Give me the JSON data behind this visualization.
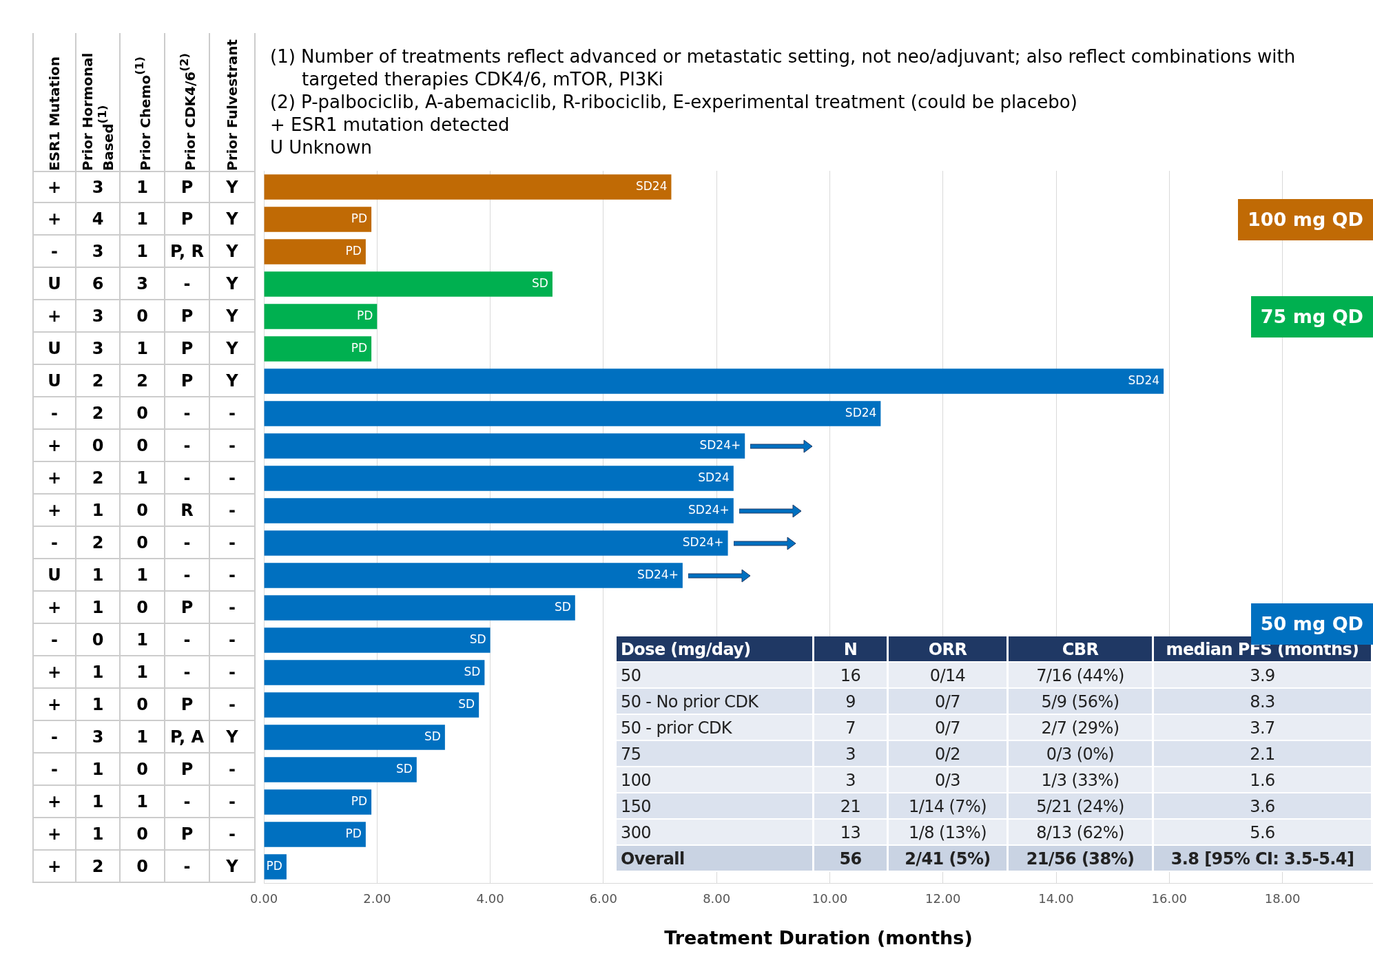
{
  "chart_data": {
    "type": "bar",
    "orientation": "horizontal",
    "xlabel": "Treatment Duration (months)",
    "annotations": [
      "ESR1 Mutation",
      "Prior Hormonal Based$^{(1)}$",
      "Prior Chemo$^{(1)}$",
      "Prior CDK4/6$^{(2)}$",
      "Prior Fulvestrant",
      "(1)  Number of treatments reflect advanced or metastatic setting, not neo/adjuvant; also reflect combinations with targeted therapies CDK4/6, mTOR, PI3Ki",
      "(2)  P-palbociclib, A-abemaciclib, R-ribociclib, E-experimental treatment (could be placebo)",
      "+  ESR1 mutation detected",
      "U  Unknown",
      "Dose (mg/day)  N  ORR  CBR  median PFS (months)",
      "50  16  0/14  7/16 (44%)  3.9",
      "50 - No prior CDK  9  0/7  5/9 (56%)  8.3",
      "50 - prior CDK  7  0/7  2/7 (29%)  3.7",
      "75  3  0/2  0/3 (0%)  2.1",
      "100  3  0/3  1/3 (33%)  1.6",
      "150  21  1/14 (7%)  5/21 (24%)  3.6",
      "300  13  1/8 (13%)  8/13 (62%)  5.6",
      "Overall  56  2/41 (5%)  21/56 (38%)  3.8 [95% CI: 3.5-5.4]"
    ],
    "categories": [
      "+  3  1  P  Y",
      "+  4  1  P  Y",
      "-  3  1  P, R  Y",
      "U  6  3  -  Y",
      "+  3  0  P  Y",
      "U  3  1  P  Y",
      "U  2  2  P  Y",
      "-  2  0  -  -",
      "+  0  0  -  -",
      "+  2  1  -  -",
      "+  1  0  R  -",
      "-  2  0  -  -",
      "U  1  1  -  -",
      "+  1  0  P  -",
      "-  0  1  -  -",
      "+  1  1  -  -",
      "+  1  0  P  -",
      "-  3  1  P, A  Y",
      "-  1  0  P  -",
      "+  1  1  -  -",
      "+  1  0  P  -",
      "+  2  0  -  Y"
    ],
    "series": [
      {
        "name": "100 mg QD",
        "color": "#c06a05",
        "values": [
          7.2,
          1.9,
          1.8,
          null,
          null,
          null,
          null,
          null,
          null,
          null,
          null,
          null,
          null,
          null,
          null,
          null,
          null,
          null,
          null,
          null,
          null,
          null
        ],
        "value_labels": [
          "SD24",
          "PD",
          "PD",
          null,
          null,
          null,
          null,
          null,
          null,
          null,
          null,
          null,
          null,
          null,
          null,
          null,
          null,
          null,
          null,
          null,
          null,
          null
        ]
      },
      {
        "name": "75 mg QD",
        "color": "#00b050",
        "values": [
          null,
          null,
          null,
          5.1,
          2.0,
          1.9,
          null,
          null,
          null,
          null,
          null,
          null,
          null,
          null,
          null,
          null,
          null,
          null,
          null,
          null,
          null,
          null
        ],
        "value_labels": [
          null,
          null,
          null,
          "SD",
          "PD",
          "PD",
          null,
          null,
          null,
          null,
          null,
          null,
          null,
          null,
          null,
          null,
          null,
          null,
          null,
          null,
          null,
          null
        ]
      },
      {
        "name": "50 mg QD",
        "color": "#0070c0",
        "values": [
          null,
          null,
          null,
          null,
          null,
          null,
          15.9,
          10.9,
          8.5,
          8.3,
          8.3,
          8.2,
          7.4,
          5.5,
          4.0,
          3.9,
          3.8,
          3.2,
          2.7,
          1.9,
          1.8,
          0.4
        ],
        "value_labels": [
          null,
          null,
          null,
          null,
          null,
          null,
          "SD24",
          "SD24",
          "SD24+",
          "SD24",
          "SD24+",
          "SD24+",
          "SD24+",
          "SD",
          "SD",
          "SD",
          "SD",
          "SD",
          "SD",
          "PD",
          "PD",
          "PD"
        ]
      }
    ],
    "xlim": [
      0,
      19.6
    ],
    "xticks": [
      {
        "value": 0,
        "label": "0.00"
      },
      {
        "value": 2,
        "label": "2.00"
      },
      {
        "value": 4,
        "label": "4.00"
      },
      {
        "value": 6,
        "label": "6.00"
      },
      {
        "value": 8,
        "label": "8.00"
      },
      {
        "value": 10,
        "label": "10.00"
      },
      {
        "value": 12,
        "label": "12.00"
      },
      {
        "value": 14,
        "label": "14.00"
      },
      {
        "value": 16,
        "label": "16.00"
      },
      {
        "value": 18,
        "label": "18.00"
      }
    ],
    "grid": "x",
    "legend": false
  }
}
